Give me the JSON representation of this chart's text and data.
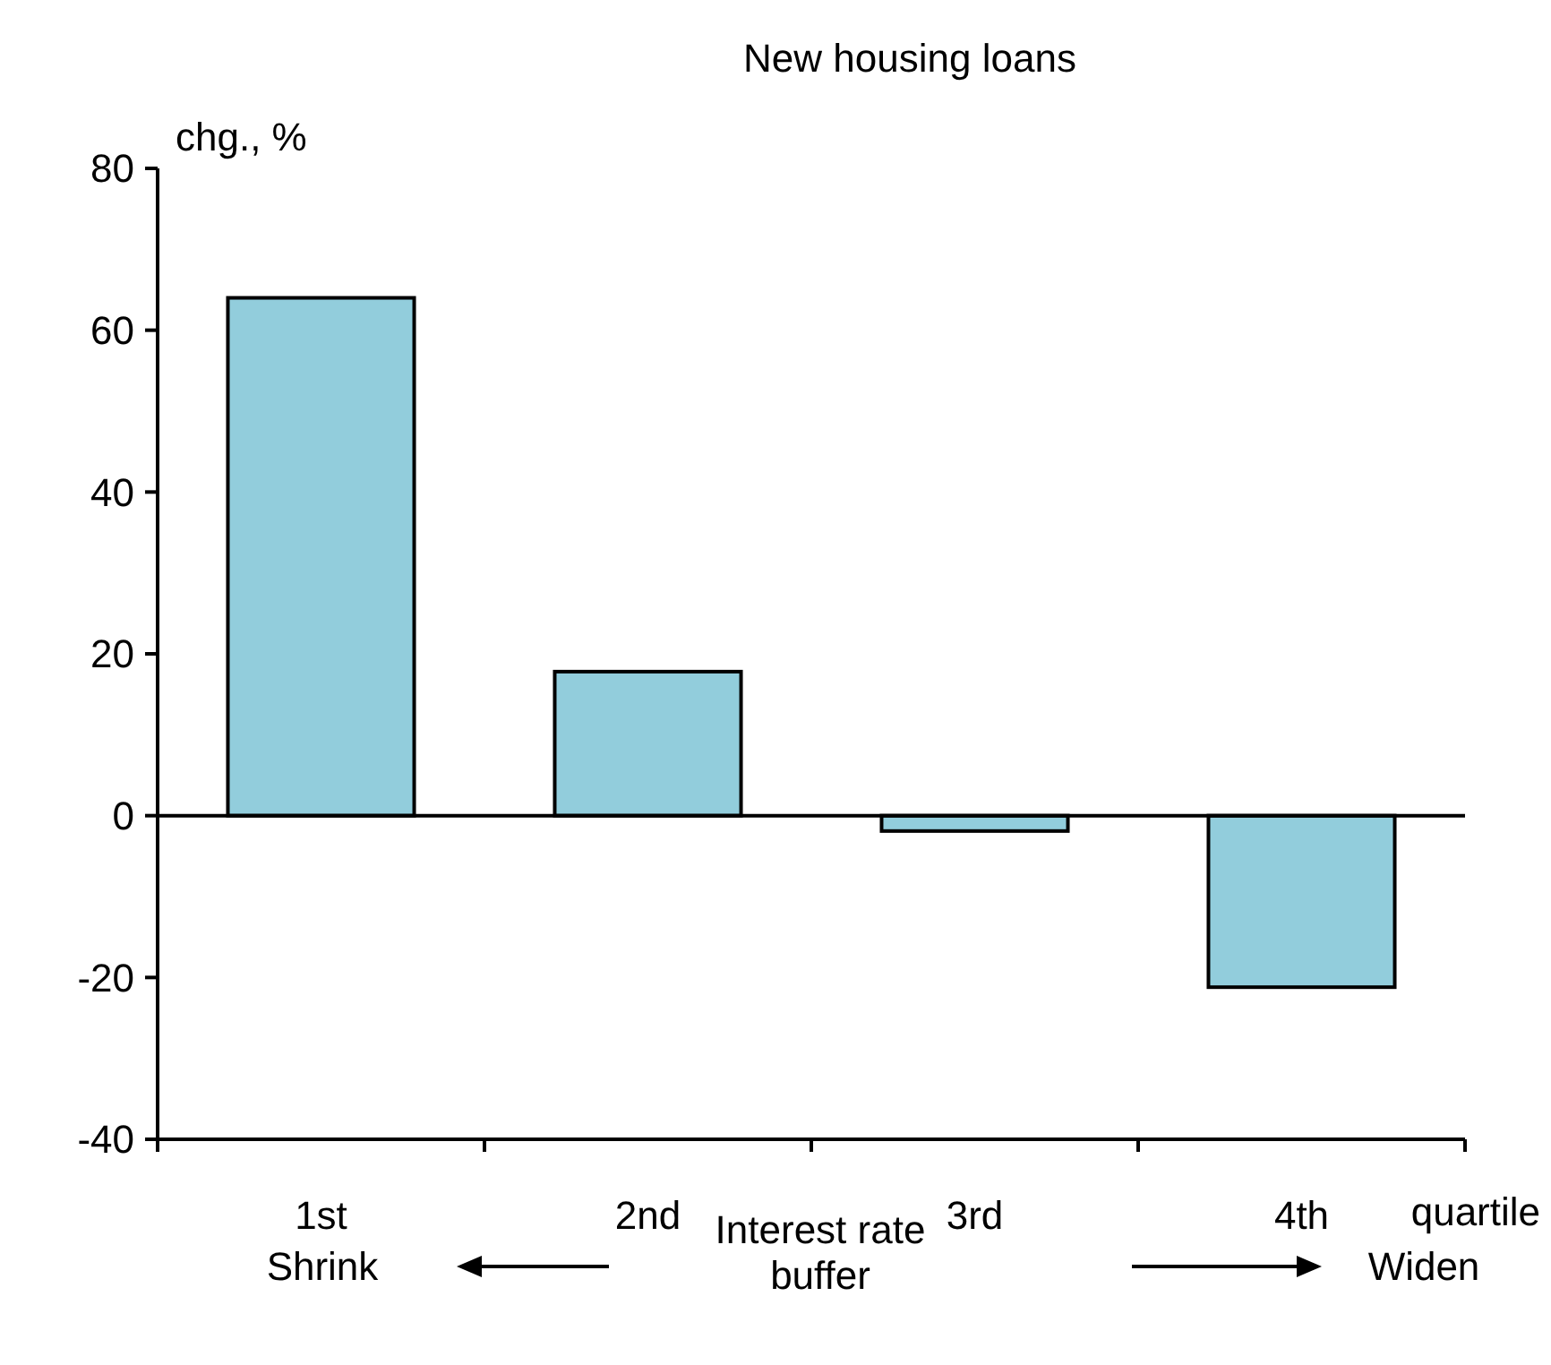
{
  "chart_data": {
    "type": "bar",
    "title": "New housing loans",
    "ylabel": "chg., %",
    "xlabel": "Interest rate buffer",
    "categories": [
      "1st",
      "2nd",
      "3rd",
      "4th"
    ],
    "values": [
      64,
      17.8,
      -1.9,
      -21.2
    ],
    "color": "#92cddc",
    "ylim": [
      -40,
      80
    ],
    "yticks": [
      -40,
      -20,
      0,
      20,
      40,
      60,
      80
    ],
    "ref_lines": [
      {
        "axis": "y",
        "value": 0
      }
    ],
    "annotations": [
      "quartile",
      "Shrink",
      "Widen"
    ]
  }
}
